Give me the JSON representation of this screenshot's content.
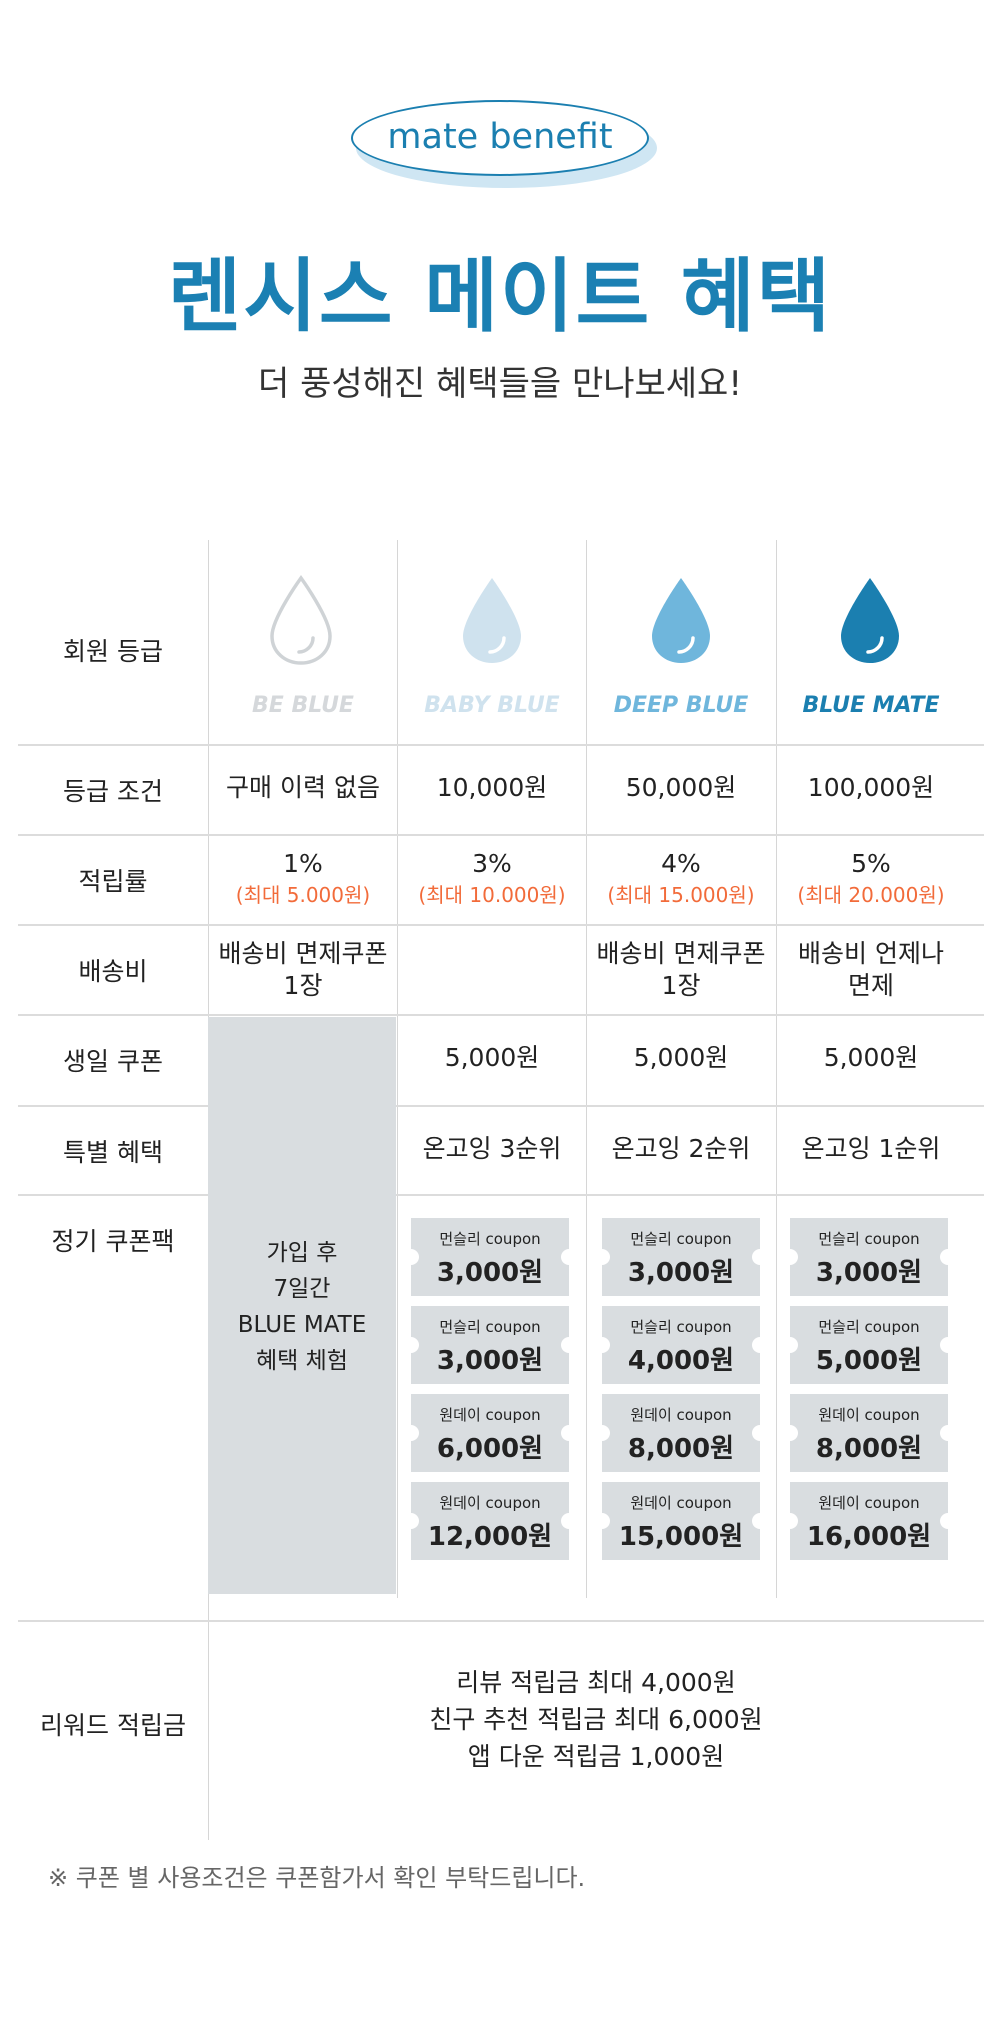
{
  "header": {
    "badge": "mate benefit",
    "title": "렌시스 메이트 혜택",
    "subtitle": "더 풍성해진 혜택들을 만나보세요!"
  },
  "colors": {
    "accent": "#1b80b3",
    "be_blue": "#cfd3d6",
    "baby_blue": "#cfe2ee",
    "deep_blue": "#6fb6dc",
    "blue_mate": "#1b7fb0",
    "sub_note": "#f26b3a",
    "coupon_bg": "#d9dde0"
  },
  "rows": {
    "grade": "회원 등급",
    "condition": "등급 조건",
    "rate": "적립률",
    "shipping": "배송비",
    "birthday": "생일 쿠폰",
    "special": "특별 혜택",
    "couponpack": "정기 쿠폰팩",
    "reward": "리워드 적립금"
  },
  "grades": [
    {
      "name": "BE BLUE",
      "icon": "drop-outline-icon",
      "condition": "구매 이력 없음",
      "rate": "1%",
      "rate_cap": "(최대 5.000원)",
      "shipping_line1": "배송비 면제쿠폰",
      "shipping_line2": "1장"
    },
    {
      "name": "BABY BLUE",
      "icon": "drop-light-icon",
      "condition": "10,000원",
      "rate": "3%",
      "rate_cap": "(최대 10.000원)",
      "shipping_line1": "",
      "shipping_line2": "",
      "birthday": "5,000원",
      "special": "온고잉 3순위",
      "coupons": [
        {
          "label": "먼슬리 coupon",
          "amount": "3,000원"
        },
        {
          "label": "먼슬리 coupon",
          "amount": "3,000원"
        },
        {
          "label": "원데이 coupon",
          "amount": "6,000원"
        },
        {
          "label": "원데이 coupon",
          "amount": "12,000원"
        }
      ]
    },
    {
      "name": "DEEP BLUE",
      "icon": "drop-medium-icon",
      "condition": "50,000원",
      "rate": "4%",
      "rate_cap": "(최대 15.000원)",
      "shipping_line1": "배송비 면제쿠폰",
      "shipping_line2": "1장",
      "birthday": "5,000원",
      "special": "온고잉 2순위",
      "coupons": [
        {
          "label": "먼슬리 coupon",
          "amount": "3,000원"
        },
        {
          "label": "먼슬리 coupon",
          "amount": "4,000원"
        },
        {
          "label": "원데이 coupon",
          "amount": "8,000원"
        },
        {
          "label": "원데이 coupon",
          "amount": "15,000원"
        }
      ]
    },
    {
      "name": "BLUE MATE",
      "icon": "drop-dark-icon",
      "condition": "100,000원",
      "rate": "5%",
      "rate_cap": "(최대 20.000원)",
      "shipping_line1": "배송비 언제나",
      "shipping_line2": "면제",
      "birthday": "5,000원",
      "special": "온고잉 1순위",
      "coupons": [
        {
          "label": "먼슬리 coupon",
          "amount": "3,000원"
        },
        {
          "label": "먼슬리 coupon",
          "amount": "5,000원"
        },
        {
          "label": "원데이 coupon",
          "amount": "8,000원"
        },
        {
          "label": "원데이 coupon",
          "amount": "16,000원"
        }
      ]
    }
  ],
  "trial": {
    "line1": "가입 후",
    "line2": "7일간",
    "line3": "BLUE MATE",
    "line4": "혜택 체험"
  },
  "reward": {
    "line1": "리뷰 적립금 최대  4,000원",
    "line2": "친구 추천 적립금 최대 6,000원",
    "line3": "앱 다운 적립금 1,000원"
  },
  "note": "※ 쿠폰 별 사용조건은 쿠폰함가서 확인 부탁드립니다."
}
